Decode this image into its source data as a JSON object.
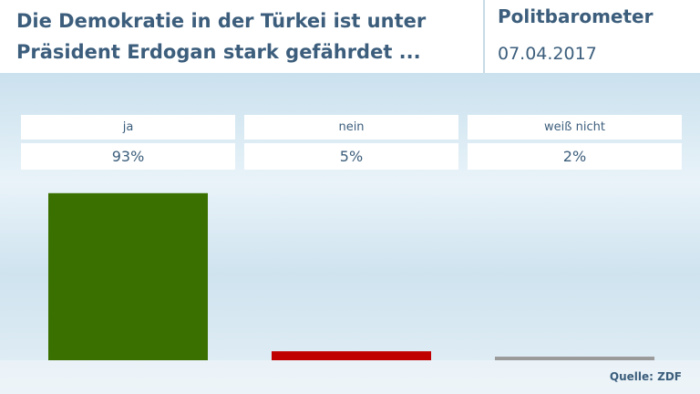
{
  "chart_data": {
    "type": "bar",
    "title": "Die Demokratie in der Türkei ist unter Präsident Erdogan stark gefährdet ...",
    "header_label": "Politbarometer",
    "date": "07.04.2017",
    "source": "Quelle: ZDF",
    "categories": [
      "ja",
      "nein",
      "weiß nicht"
    ],
    "values": [
      93,
      5,
      2
    ],
    "value_labels": [
      "93%",
      "5%",
      "2%"
    ],
    "colors": [
      "#3a7000",
      "#c00000",
      "#9a9a9a"
    ]
  }
}
